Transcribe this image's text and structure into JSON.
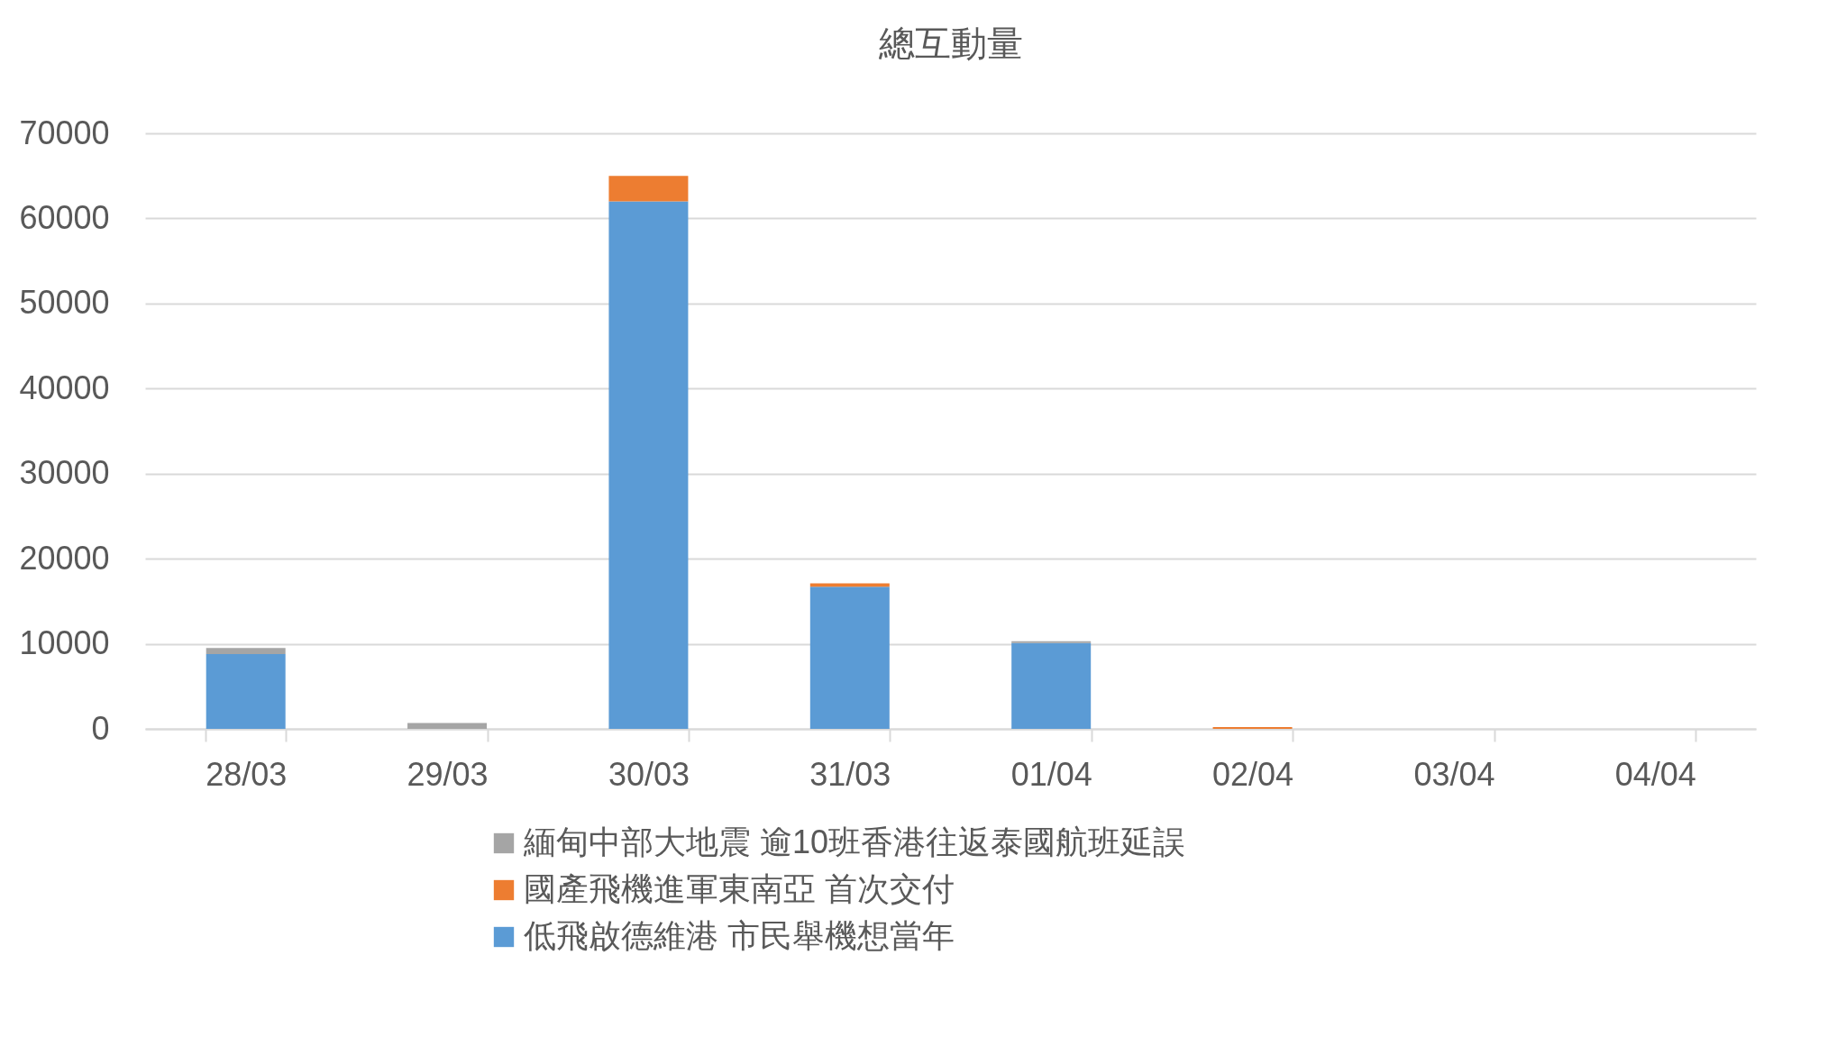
{
  "chart_data": {
    "type": "bar",
    "title": "總互動量",
    "stacked": true,
    "grid": "y",
    "legend": "bottom",
    "categories": [
      "28/03",
      "29/03",
      "30/03",
      "31/03",
      "01/04",
      "02/04",
      "03/04",
      "04/04"
    ],
    "series": [
      {
        "name": "低飛啟德維港 市民舉機想當年",
        "color": "#5b9bd5",
        "values": [
          8800,
          0,
          62000,
          16700,
          10100,
          0,
          0,
          0
        ]
      },
      {
        "name": "國產飛機進軍東南亞 首次交付",
        "color": "#ed7d31",
        "values": [
          0,
          0,
          3000,
          400,
          0,
          200,
          0,
          0
        ]
      },
      {
        "name": "緬甸中部大地震 逾10班香港往返泰國航班延誤",
        "color": "#a5a5a5",
        "values": [
          700,
          700,
          0,
          0,
          200,
          0,
          0,
          0
        ]
      }
    ],
    "ylim": [
      0,
      70000
    ],
    "yticks": [
      0,
      10000,
      20000,
      30000,
      40000,
      50000,
      60000,
      70000
    ]
  }
}
